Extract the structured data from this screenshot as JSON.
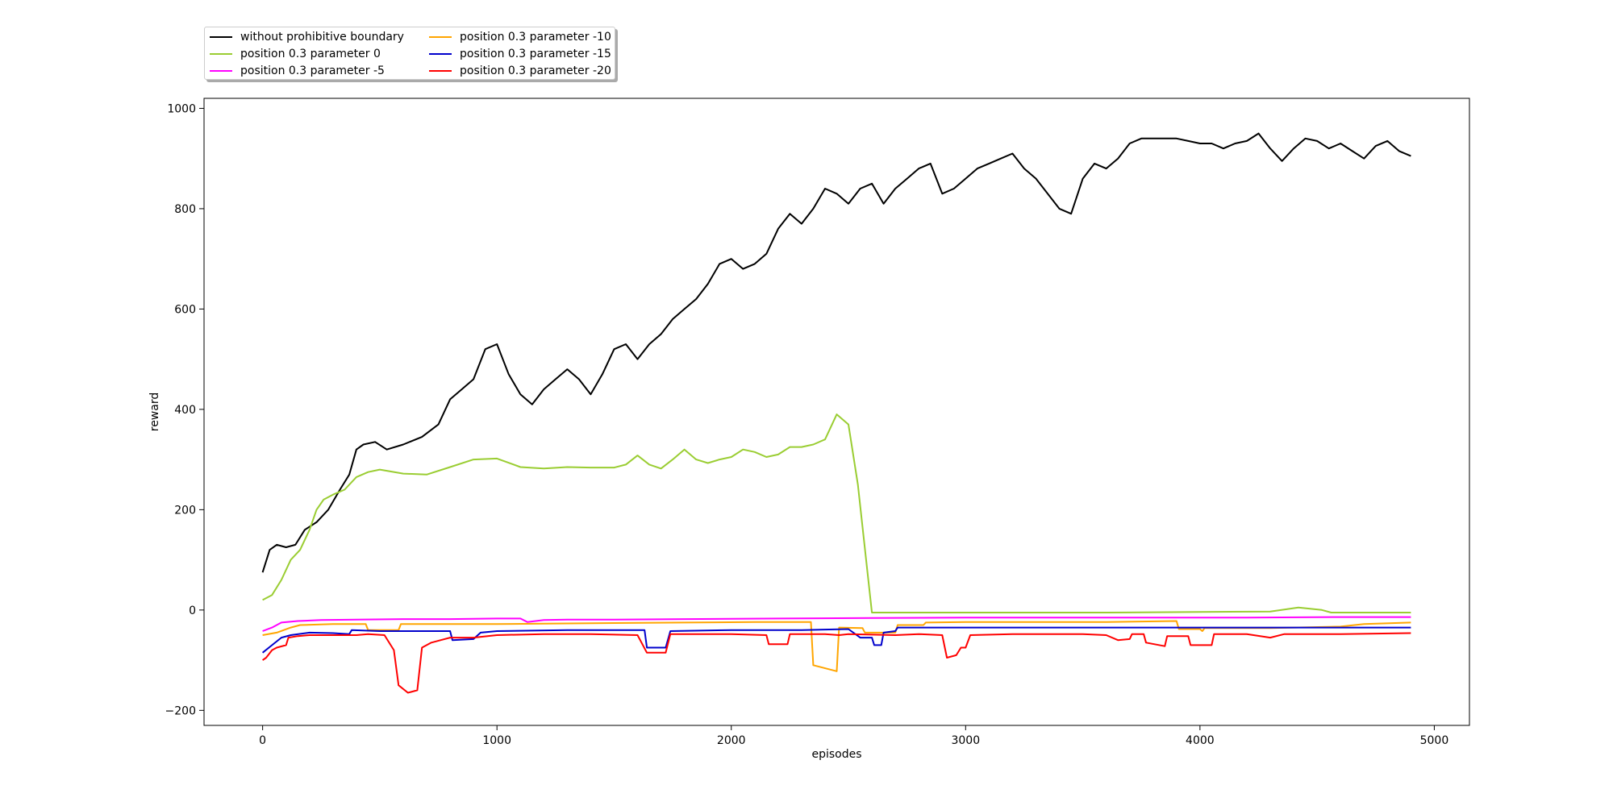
{
  "chart_data": {
    "type": "line",
    "title": "",
    "xlabel": "episodes",
    "ylabel": "reward",
    "xlim": [
      -250,
      5150
    ],
    "ylim": [
      -230,
      1020
    ],
    "xticks": [
      0,
      1000,
      2000,
      3000,
      4000,
      5000
    ],
    "yticks": [
      -200,
      0,
      200,
      400,
      600,
      800,
      1000
    ],
    "grid": false,
    "legend_position": "top-left, above plot",
    "series": [
      {
        "name": "without prohibitive boundary",
        "color": "#000000",
        "points": [
          [
            0,
            75
          ],
          [
            30,
            120
          ],
          [
            60,
            130
          ],
          [
            100,
            125
          ],
          [
            140,
            130
          ],
          [
            180,
            160
          ],
          [
            230,
            175
          ],
          [
            280,
            200
          ],
          [
            330,
            240
          ],
          [
            370,
            270
          ],
          [
            400,
            320
          ],
          [
            430,
            330
          ],
          [
            480,
            335
          ],
          [
            530,
            320
          ],
          [
            600,
            330
          ],
          [
            680,
            345
          ],
          [
            750,
            370
          ],
          [
            800,
            420
          ],
          [
            850,
            440
          ],
          [
            900,
            460
          ],
          [
            950,
            520
          ],
          [
            1000,
            530
          ],
          [
            1050,
            470
          ],
          [
            1100,
            430
          ],
          [
            1150,
            410
          ],
          [
            1200,
            440
          ],
          [
            1250,
            460
          ],
          [
            1300,
            480
          ],
          [
            1350,
            460
          ],
          [
            1400,
            430
          ],
          [
            1450,
            470
          ],
          [
            1500,
            520
          ],
          [
            1550,
            530
          ],
          [
            1600,
            500
          ],
          [
            1650,
            530
          ],
          [
            1700,
            550
          ],
          [
            1750,
            580
          ],
          [
            1800,
            600
          ],
          [
            1850,
            620
          ],
          [
            1900,
            650
          ],
          [
            1950,
            690
          ],
          [
            2000,
            700
          ],
          [
            2050,
            680
          ],
          [
            2100,
            690
          ],
          [
            2150,
            710
          ],
          [
            2200,
            760
          ],
          [
            2250,
            790
          ],
          [
            2300,
            770
          ],
          [
            2350,
            800
          ],
          [
            2400,
            840
          ],
          [
            2450,
            830
          ],
          [
            2500,
            810
          ],
          [
            2550,
            840
          ],
          [
            2600,
            850
          ],
          [
            2650,
            810
          ],
          [
            2700,
            840
          ],
          [
            2750,
            860
          ],
          [
            2800,
            880
          ],
          [
            2850,
            890
          ],
          [
            2900,
            830
          ],
          [
            2950,
            840
          ],
          [
            3000,
            860
          ],
          [
            3050,
            880
          ],
          [
            3100,
            890
          ],
          [
            3150,
            900
          ],
          [
            3200,
            910
          ],
          [
            3250,
            880
          ],
          [
            3300,
            860
          ],
          [
            3350,
            830
          ],
          [
            3400,
            800
          ],
          [
            3450,
            790
          ],
          [
            3500,
            860
          ],
          [
            3550,
            890
          ],
          [
            3600,
            880
          ],
          [
            3650,
            900
          ],
          [
            3700,
            930
          ],
          [
            3750,
            940
          ],
          [
            3800,
            940
          ],
          [
            3850,
            940
          ],
          [
            3900,
            940
          ],
          [
            3950,
            935
          ],
          [
            4000,
            930
          ],
          [
            4050,
            930
          ],
          [
            4100,
            920
          ],
          [
            4150,
            930
          ],
          [
            4200,
            935
          ],
          [
            4250,
            950
          ],
          [
            4300,
            920
          ],
          [
            4350,
            895
          ],
          [
            4400,
            920
          ],
          [
            4450,
            940
          ],
          [
            4500,
            935
          ],
          [
            4550,
            920
          ],
          [
            4600,
            930
          ],
          [
            4650,
            915
          ],
          [
            4700,
            900
          ],
          [
            4750,
            925
          ],
          [
            4800,
            935
          ],
          [
            4850,
            915
          ],
          [
            4900,
            905
          ]
        ]
      },
      {
        "name": "position 0.3 parameter 0",
        "color": "#9acd32",
        "points": [
          [
            0,
            20
          ],
          [
            40,
            30
          ],
          [
            80,
            60
          ],
          [
            120,
            100
          ],
          [
            160,
            120
          ],
          [
            200,
            160
          ],
          [
            230,
            200
          ],
          [
            260,
            220
          ],
          [
            300,
            230
          ],
          [
            350,
            240
          ],
          [
            400,
            265
          ],
          [
            450,
            275
          ],
          [
            500,
            280
          ],
          [
            600,
            272
          ],
          [
            700,
            270
          ],
          [
            800,
            285
          ],
          [
            900,
            300
          ],
          [
            1000,
            302
          ],
          [
            1100,
            285
          ],
          [
            1200,
            282
          ],
          [
            1300,
            285
          ],
          [
            1400,
            284
          ],
          [
            1500,
            284
          ],
          [
            1550,
            290
          ],
          [
            1600,
            308
          ],
          [
            1650,
            290
          ],
          [
            1700,
            282
          ],
          [
            1750,
            300
          ],
          [
            1800,
            320
          ],
          [
            1850,
            300
          ],
          [
            1900,
            293
          ],
          [
            1950,
            300
          ],
          [
            2000,
            305
          ],
          [
            2050,
            320
          ],
          [
            2100,
            315
          ],
          [
            2150,
            305
          ],
          [
            2200,
            310
          ],
          [
            2250,
            325
          ],
          [
            2300,
            325
          ],
          [
            2350,
            330
          ],
          [
            2400,
            340
          ],
          [
            2450,
            390
          ],
          [
            2500,
            370
          ],
          [
            2540,
            250
          ],
          [
            2580,
            80
          ],
          [
            2600,
            -5
          ],
          [
            2800,
            -5
          ],
          [
            3200,
            -5
          ],
          [
            3600,
            -5
          ],
          [
            4000,
            -4
          ],
          [
            4300,
            -3
          ],
          [
            4420,
            5
          ],
          [
            4520,
            0
          ],
          [
            4560,
            -5
          ],
          [
            4900,
            -5
          ]
        ]
      },
      {
        "name": "position 0.3 parameter -5",
        "color": "#ff00ff",
        "points": [
          [
            0,
            -42
          ],
          [
            40,
            -35
          ],
          [
            80,
            -25
          ],
          [
            150,
            -22
          ],
          [
            250,
            -20
          ],
          [
            400,
            -19
          ],
          [
            600,
            -18
          ],
          [
            800,
            -18
          ],
          [
            1000,
            -17
          ],
          [
            1100,
            -17
          ],
          [
            1130,
            -24
          ],
          [
            1200,
            -20
          ],
          [
            1300,
            -19
          ],
          [
            1500,
            -19
          ],
          [
            1800,
            -18
          ],
          [
            2200,
            -17
          ],
          [
            2600,
            -16
          ],
          [
            3000,
            -15
          ],
          [
            3400,
            -15
          ],
          [
            3800,
            -15
          ],
          [
            4200,
            -15
          ],
          [
            4600,
            -14
          ],
          [
            4900,
            -14
          ]
        ]
      },
      {
        "name": "position 0.3 parameter -10",
        "color": "#ffa500",
        "points": [
          [
            0,
            -50
          ],
          [
            60,
            -45
          ],
          [
            120,
            -35
          ],
          [
            160,
            -30
          ],
          [
            300,
            -28
          ],
          [
            440,
            -28
          ],
          [
            450,
            -40
          ],
          [
            580,
            -40
          ],
          [
            590,
            -28
          ],
          [
            800,
            -28
          ],
          [
            1000,
            -28
          ],
          [
            1200,
            -27
          ],
          [
            1500,
            -26
          ],
          [
            1800,
            -25
          ],
          [
            2100,
            -24
          ],
          [
            2340,
            -24
          ],
          [
            2350,
            -110
          ],
          [
            2450,
            -122
          ],
          [
            2460,
            -35
          ],
          [
            2560,
            -36
          ],
          [
            2570,
            -45
          ],
          [
            2700,
            -45
          ],
          [
            2710,
            -30
          ],
          [
            2820,
            -30
          ],
          [
            2830,
            -25
          ],
          [
            3000,
            -24
          ],
          [
            3300,
            -24
          ],
          [
            3600,
            -24
          ],
          [
            3900,
            -22
          ],
          [
            3910,
            -38
          ],
          [
            4000,
            -38
          ],
          [
            4010,
            -42
          ],
          [
            4020,
            -36
          ],
          [
            4300,
            -36
          ],
          [
            4600,
            -33
          ],
          [
            4700,
            -28
          ],
          [
            4900,
            -25
          ]
        ]
      },
      {
        "name": "position 0.3 parameter -15",
        "color": "#0000cc",
        "points": [
          [
            0,
            -85
          ],
          [
            40,
            -70
          ],
          [
            80,
            -55
          ],
          [
            120,
            -50
          ],
          [
            200,
            -45
          ],
          [
            300,
            -46
          ],
          [
            370,
            -48
          ],
          [
            380,
            -40
          ],
          [
            500,
            -42
          ],
          [
            800,
            -42
          ],
          [
            810,
            -60
          ],
          [
            900,
            -58
          ],
          [
            930,
            -45
          ],
          [
            1000,
            -42
          ],
          [
            1300,
            -40
          ],
          [
            1600,
            -40
          ],
          [
            1630,
            -40
          ],
          [
            1640,
            -75
          ],
          [
            1720,
            -75
          ],
          [
            1740,
            -42
          ],
          [
            2000,
            -40
          ],
          [
            2300,
            -40
          ],
          [
            2500,
            -38
          ],
          [
            2550,
            -55
          ],
          [
            2600,
            -55
          ],
          [
            2610,
            -70
          ],
          [
            2640,
            -70
          ],
          [
            2650,
            -45
          ],
          [
            2700,
            -42
          ],
          [
            2710,
            -35
          ],
          [
            3000,
            -35
          ],
          [
            3500,
            -35
          ],
          [
            4000,
            -35
          ],
          [
            4500,
            -35
          ],
          [
            4900,
            -35
          ]
        ]
      },
      {
        "name": "position 0.3 parameter -20",
        "color": "#ff0000",
        "points": [
          [
            0,
            -100
          ],
          [
            15,
            -95
          ],
          [
            40,
            -80
          ],
          [
            60,
            -75
          ],
          [
            100,
            -70
          ],
          [
            110,
            -55
          ],
          [
            150,
            -52
          ],
          [
            200,
            -50
          ],
          [
            300,
            -50
          ],
          [
            400,
            -50
          ],
          [
            450,
            -48
          ],
          [
            520,
            -50
          ],
          [
            560,
            -80
          ],
          [
            580,
            -150
          ],
          [
            620,
            -165
          ],
          [
            660,
            -160
          ],
          [
            680,
            -75
          ],
          [
            720,
            -65
          ],
          [
            760,
            -60
          ],
          [
            800,
            -55
          ],
          [
            850,
            -55
          ],
          [
            900,
            -55
          ],
          [
            1000,
            -50
          ],
          [
            1200,
            -48
          ],
          [
            1400,
            -48
          ],
          [
            1600,
            -50
          ],
          [
            1640,
            -85
          ],
          [
            1720,
            -85
          ],
          [
            1740,
            -48
          ],
          [
            2000,
            -48
          ],
          [
            2150,
            -50
          ],
          [
            2160,
            -68
          ],
          [
            2240,
            -68
          ],
          [
            2250,
            -48
          ],
          [
            2400,
            -48
          ],
          [
            2460,
            -50
          ],
          [
            2500,
            -48
          ],
          [
            2700,
            -50
          ],
          [
            2800,
            -48
          ],
          [
            2900,
            -50
          ],
          [
            2920,
            -95
          ],
          [
            2960,
            -90
          ],
          [
            2980,
            -75
          ],
          [
            3000,
            -75
          ],
          [
            3020,
            -50
          ],
          [
            3200,
            -48
          ],
          [
            3500,
            -48
          ],
          [
            3600,
            -50
          ],
          [
            3650,
            -60
          ],
          [
            3700,
            -58
          ],
          [
            3710,
            -48
          ],
          [
            3760,
            -48
          ],
          [
            3770,
            -65
          ],
          [
            3850,
            -72
          ],
          [
            3860,
            -52
          ],
          [
            3950,
            -52
          ],
          [
            3960,
            -70
          ],
          [
            4050,
            -70
          ],
          [
            4060,
            -48
          ],
          [
            4200,
            -48
          ],
          [
            4300,
            -55
          ],
          [
            4360,
            -48
          ],
          [
            4600,
            -48
          ],
          [
            4900,
            -46
          ]
        ]
      }
    ]
  }
}
